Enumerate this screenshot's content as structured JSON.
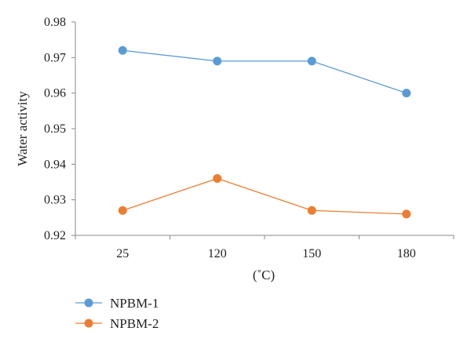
{
  "chart_data": {
    "type": "line",
    "categories": [
      "25",
      "120",
      "150",
      "180"
    ],
    "series": [
      {
        "name": "NPBM-1",
        "values": [
          0.972,
          0.969,
          0.969,
          0.96
        ],
        "color": "#5b9bd5"
      },
      {
        "name": "NPBM-2",
        "values": [
          0.927,
          0.936,
          0.927,
          0.926
        ],
        "color": "#ed7d31"
      }
    ],
    "xlabel": "(˚C)",
    "ylabel": "Water activity",
    "ylim": [
      0.92,
      0.98
    ],
    "yticks": [
      "0.98",
      "0.97",
      "0.96",
      "0.95",
      "0.94",
      "0.93",
      "0.92"
    ],
    "grid": false,
    "legend_position": "bottom-left"
  }
}
